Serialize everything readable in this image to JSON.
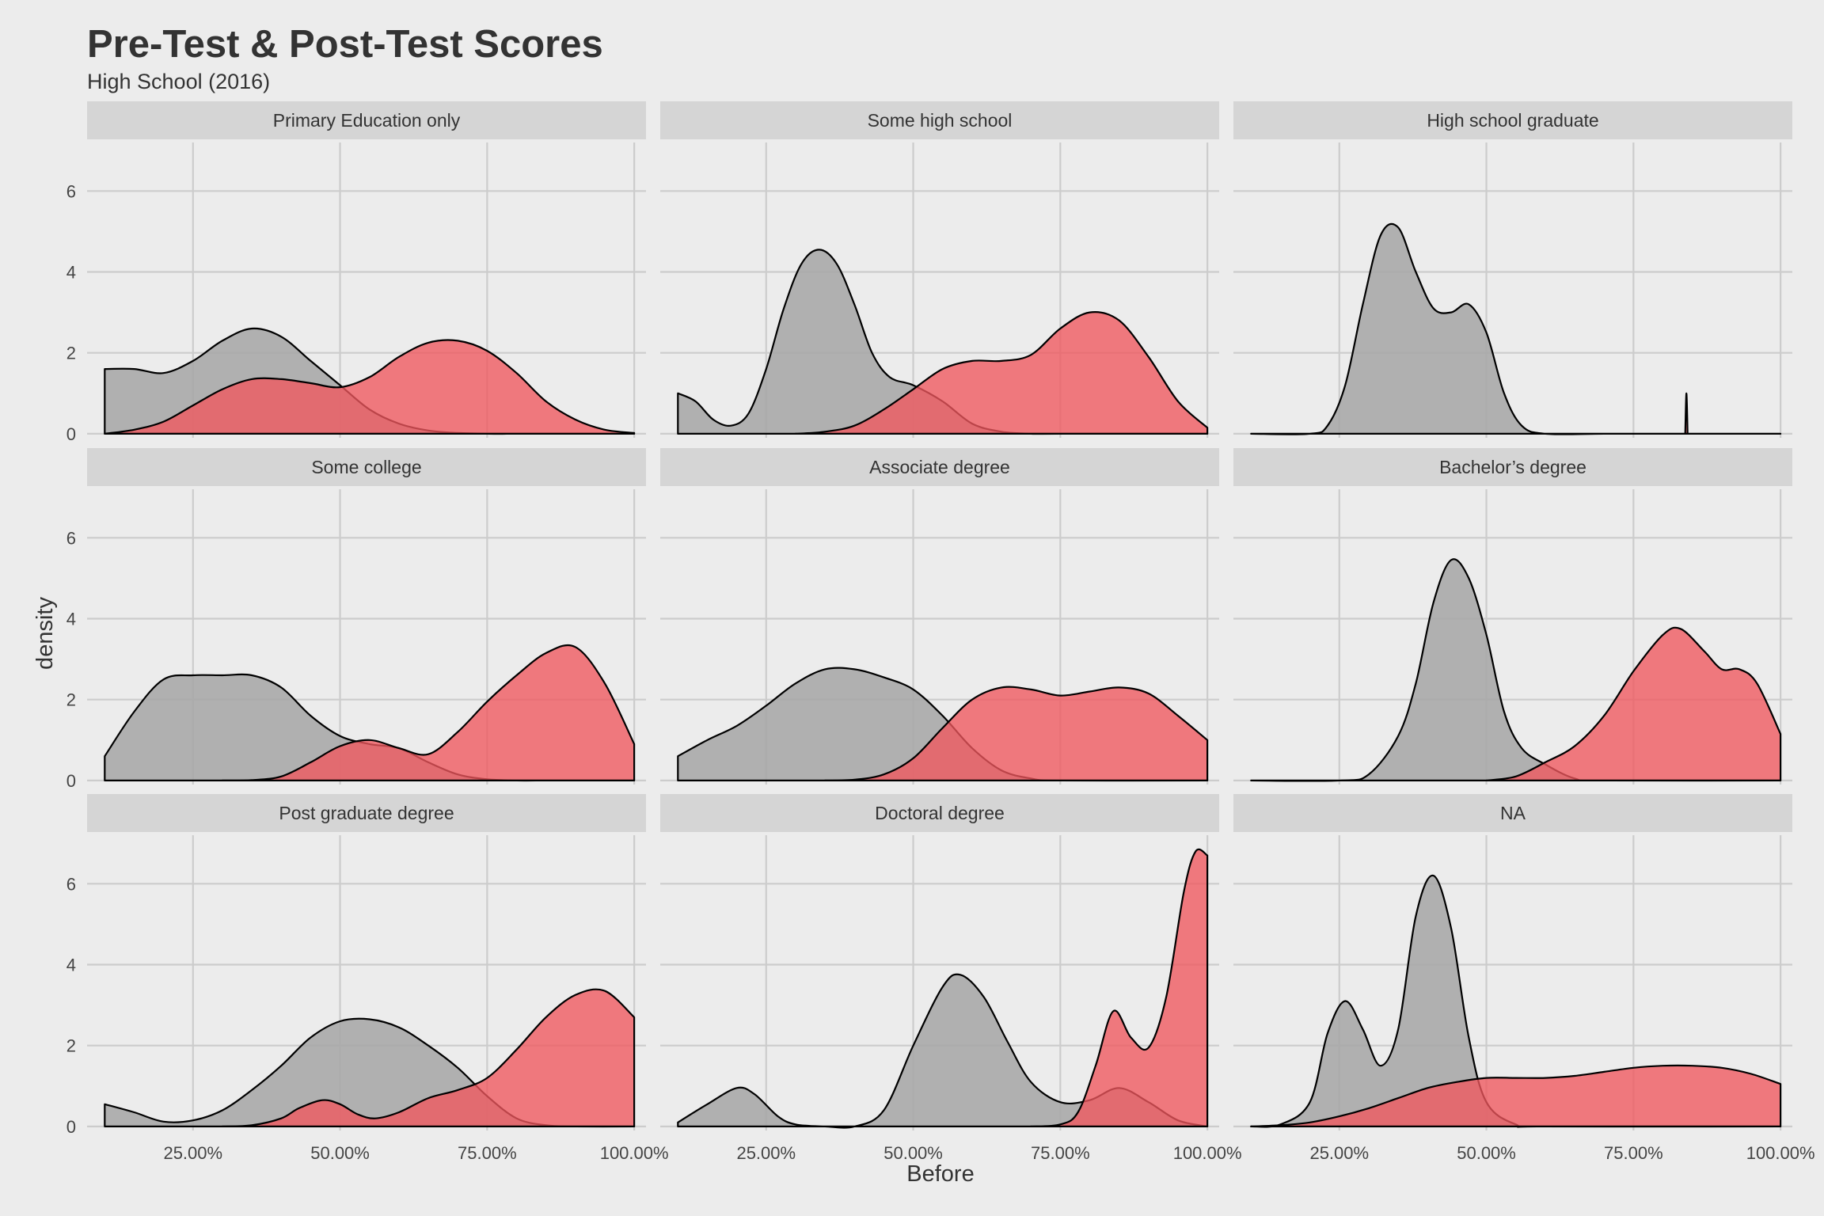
{
  "chart_data": {
    "type": "area",
    "subtype": "density-faceted",
    "title": "Pre-Test & Post-Test Scores",
    "subtitle": "High School (2016)",
    "xlabel": "Before",
    "ylabel": "density",
    "xlim": [
      0.07,
      1.02
    ],
    "ylim": [
      -0.1,
      7.2
    ],
    "x_ticks": [
      0.25,
      0.5,
      0.75,
      1.0
    ],
    "x_tick_labels": [
      "25.00%",
      "50.00%",
      "75.00%",
      "100.00%"
    ],
    "y_ticks": [
      0,
      2,
      4,
      6
    ],
    "y_tick_labels": [
      "0",
      "2",
      "4",
      "6"
    ],
    "grid": true,
    "layout": "3x3 facets",
    "colors": {
      "before": "#a6a6a6",
      "after": "#f0575e",
      "background": "#ececec",
      "strip": "#d5d5d5",
      "grid": "#cccccc"
    },
    "panels": [
      {
        "label": "Primary Education only",
        "series": [
          {
            "group": "before",
            "color": "#a6a6a6",
            "x": [
              0.1,
              0.15,
              0.2,
              0.25,
              0.3,
              0.35,
              0.4,
              0.45,
              0.5,
              0.55,
              0.6,
              0.65,
              0.7,
              0.75,
              0.8,
              0.85,
              0.9,
              0.95,
              1.0
            ],
            "y": [
              1.6,
              1.6,
              1.5,
              1.8,
              2.3,
              2.6,
              2.4,
              1.8,
              1.2,
              0.6,
              0.25,
              0.08,
              0.02,
              0,
              0,
              0,
              0,
              0,
              0
            ]
          },
          {
            "group": "after",
            "color": "#f0575e",
            "x": [
              0.1,
              0.15,
              0.2,
              0.25,
              0.3,
              0.35,
              0.4,
              0.45,
              0.5,
              0.55,
              0.6,
              0.65,
              0.7,
              0.75,
              0.8,
              0.85,
              0.9,
              0.95,
              1.0
            ],
            "y": [
              0,
              0.1,
              0.3,
              0.7,
              1.1,
              1.35,
              1.35,
              1.25,
              1.15,
              1.4,
              1.9,
              2.25,
              2.3,
              2.05,
              1.5,
              0.8,
              0.35,
              0.1,
              0.02
            ]
          }
        ]
      },
      {
        "label": "Some high school",
        "series": [
          {
            "group": "before",
            "color": "#a6a6a6",
            "x": [
              0.1,
              0.13,
              0.16,
              0.19,
              0.22,
              0.25,
              0.28,
              0.31,
              0.34,
              0.37,
              0.4,
              0.43,
              0.46,
              0.5,
              0.55,
              0.6,
              0.65,
              0.7,
              0.75,
              1.0
            ],
            "y": [
              1.0,
              0.8,
              0.35,
              0.2,
              0.5,
              1.6,
              3.1,
              4.2,
              4.55,
              4.2,
              3.2,
              2.0,
              1.4,
              1.2,
              0.8,
              0.25,
              0.05,
              0,
              0,
              0
            ]
          },
          {
            "group": "after",
            "color": "#f0575e",
            "x": [
              0.3,
              0.35,
              0.4,
              0.45,
              0.5,
              0.55,
              0.6,
              0.65,
              0.7,
              0.75,
              0.8,
              0.85,
              0.9,
              0.95,
              1.0
            ],
            "y": [
              0,
              0.05,
              0.2,
              0.6,
              1.1,
              1.6,
              1.8,
              1.8,
              1.95,
              2.6,
              3.0,
              2.8,
              1.9,
              0.8,
              0.15
            ]
          }
        ]
      },
      {
        "label": "High school graduate",
        "series": [
          {
            "group": "before",
            "color": "#a6a6a6",
            "x": [
              0.1,
              0.2,
              0.23,
              0.26,
              0.29,
              0.32,
              0.35,
              0.38,
              0.41,
              0.44,
              0.47,
              0.5,
              0.53,
              0.56,
              0.6,
              0.7,
              0.8,
              0.9,
              1.0
            ],
            "y": [
              0,
              0,
              0.2,
              1.2,
              3.2,
              4.9,
              5.1,
              4.0,
              3.1,
              3.0,
              3.2,
              2.5,
              1.0,
              0.2,
              0,
              0,
              0,
              0,
              0
            ]
          },
          {
            "group": "after",
            "color": "#f0575e",
            "x": [
              0.838,
              0.84,
              0.842
            ],
            "y": [
              0,
              1.0,
              0
            ]
          }
        ]
      },
      {
        "label": "Some college",
        "series": [
          {
            "group": "before",
            "color": "#a6a6a6",
            "x": [
              0.1,
              0.15,
              0.2,
              0.25,
              0.3,
              0.35,
              0.4,
              0.45,
              0.5,
              0.55,
              0.6,
              0.65,
              0.7,
              0.75,
              0.8,
              0.85,
              0.9,
              1.0
            ],
            "y": [
              0.6,
              1.7,
              2.5,
              2.6,
              2.6,
              2.6,
              2.3,
              1.6,
              1.1,
              0.9,
              0.8,
              0.45,
              0.15,
              0.03,
              0,
              0,
              0,
              0
            ]
          },
          {
            "group": "after",
            "color": "#f0575e",
            "x": [
              0.3,
              0.35,
              0.4,
              0.45,
              0.5,
              0.55,
              0.6,
              0.65,
              0.7,
              0.75,
              0.8,
              0.85,
              0.9,
              0.95,
              1.0
            ],
            "y": [
              0,
              0.01,
              0.1,
              0.45,
              0.85,
              1.0,
              0.8,
              0.65,
              1.2,
              1.95,
              2.6,
              3.15,
              3.3,
              2.4,
              0.9
            ]
          }
        ]
      },
      {
        "label": "Associate degree",
        "series": [
          {
            "group": "before",
            "color": "#a6a6a6",
            "x": [
              0.1,
              0.15,
              0.2,
              0.25,
              0.3,
              0.35,
              0.4,
              0.45,
              0.5,
              0.55,
              0.6,
              0.65,
              0.7,
              0.75,
              1.0
            ],
            "y": [
              0.6,
              1.0,
              1.35,
              1.85,
              2.4,
              2.75,
              2.75,
              2.55,
              2.25,
              1.6,
              0.8,
              0.25,
              0.05,
              0,
              0
            ]
          },
          {
            "group": "after",
            "color": "#f0575e",
            "x": [
              0.35,
              0.4,
              0.45,
              0.5,
              0.55,
              0.6,
              0.65,
              0.7,
              0.75,
              0.8,
              0.85,
              0.9,
              0.95,
              1.0
            ],
            "y": [
              0,
              0.02,
              0.15,
              0.55,
              1.3,
              2.0,
              2.3,
              2.25,
              2.1,
              2.2,
              2.3,
              2.15,
              1.6,
              1.0
            ]
          }
        ]
      },
      {
        "label": "Bachelor’s degree",
        "series": [
          {
            "group": "before",
            "color": "#a6a6a6",
            "x": [
              0.1,
              0.25,
              0.3,
              0.35,
              0.38,
              0.41,
              0.44,
              0.47,
              0.5,
              0.53,
              0.56,
              0.6,
              0.65,
              0.7,
              1.0
            ],
            "y": [
              0,
              0,
              0.15,
              1.1,
              2.4,
              4.4,
              5.45,
              5.0,
              3.6,
              1.7,
              0.8,
              0.4,
              0.05,
              0,
              0
            ]
          },
          {
            "group": "after",
            "color": "#f0575e",
            "x": [
              0.5,
              0.55,
              0.6,
              0.65,
              0.7,
              0.75,
              0.8,
              0.83,
              0.87,
              0.9,
              0.93,
              0.96,
              1.0
            ],
            "y": [
              0,
              0.1,
              0.45,
              0.85,
              1.6,
              2.7,
              3.6,
              3.75,
              3.2,
              2.75,
              2.75,
              2.4,
              1.15
            ]
          }
        ]
      },
      {
        "label": "Post graduate degree",
        "series": [
          {
            "group": "before",
            "color": "#a6a6a6",
            "x": [
              0.1,
              0.15,
              0.2,
              0.25,
              0.3,
              0.35,
              0.4,
              0.45,
              0.5,
              0.55,
              0.6,
              0.65,
              0.7,
              0.75,
              0.8,
              0.85,
              0.9,
              1.0
            ],
            "y": [
              0.55,
              0.35,
              0.12,
              0.15,
              0.4,
              0.9,
              1.5,
              2.2,
              2.6,
              2.65,
              2.45,
              2.0,
              1.45,
              0.75,
              0.2,
              0.03,
              0,
              0
            ]
          },
          {
            "group": "after",
            "color": "#f0575e",
            "x": [
              0.3,
              0.35,
              0.4,
              0.43,
              0.47,
              0.5,
              0.53,
              0.56,
              0.6,
              0.65,
              0.7,
              0.75,
              0.8,
              0.85,
              0.9,
              0.95,
              1.0
            ],
            "y": [
              0,
              0.03,
              0.2,
              0.45,
              0.65,
              0.55,
              0.3,
              0.2,
              0.35,
              0.7,
              0.9,
              1.2,
              1.9,
              2.7,
              3.25,
              3.35,
              2.7
            ]
          }
        ]
      },
      {
        "label": "Doctoral degree",
        "series": [
          {
            "group": "before",
            "color": "#a6a6a6",
            "x": [
              0.1,
              0.15,
              0.2,
              0.23,
              0.27,
              0.3,
              0.35,
              0.4,
              0.45,
              0.5,
              0.55,
              0.58,
              0.62,
              0.66,
              0.7,
              0.75,
              0.8,
              0.85,
              0.9,
              0.95,
              1.0
            ],
            "y": [
              0.1,
              0.55,
              0.95,
              0.8,
              0.25,
              0.05,
              0,
              0,
              0.4,
              2.0,
              3.45,
              3.75,
              3.2,
              2.1,
              1.1,
              0.6,
              0.65,
              0.95,
              0.6,
              0.15,
              0
            ]
          },
          {
            "group": "after",
            "color": "#f0575e",
            "x": [
              0.7,
              0.75,
              0.78,
              0.81,
              0.84,
              0.87,
              0.9,
              0.93,
              0.96,
              0.98,
              1.0
            ],
            "y": [
              0,
              0.05,
              0.35,
              1.5,
              2.85,
              2.2,
              1.95,
              3.2,
              5.8,
              6.8,
              6.7
            ]
          }
        ]
      },
      {
        "label": "NA",
        "series": [
          {
            "group": "before",
            "color": "#a6a6a6",
            "x": [
              0.1,
              0.15,
              0.2,
              0.23,
              0.26,
              0.29,
              0.32,
              0.35,
              0.38,
              0.41,
              0.44,
              0.47,
              0.5,
              0.55,
              0.6,
              1.0
            ],
            "y": [
              0,
              0.05,
              0.6,
              2.3,
              3.1,
              2.4,
              1.5,
              2.4,
              5.2,
              6.2,
              4.9,
              2.2,
              0.6,
              0.05,
              0,
              0
            ]
          },
          {
            "group": "after",
            "color": "#f0575e",
            "x": [
              0.1,
              0.15,
              0.2,
              0.25,
              0.3,
              0.35,
              0.4,
              0.45,
              0.5,
              0.55,
              0.6,
              0.65,
              0.7,
              0.75,
              0.8,
              0.85,
              0.9,
              0.95,
              1.0
            ],
            "y": [
              0,
              0.03,
              0.1,
              0.25,
              0.45,
              0.7,
              0.95,
              1.1,
              1.2,
              1.2,
              1.2,
              1.25,
              1.35,
              1.45,
              1.5,
              1.5,
              1.45,
              1.3,
              1.05
            ]
          }
        ]
      }
    ]
  }
}
